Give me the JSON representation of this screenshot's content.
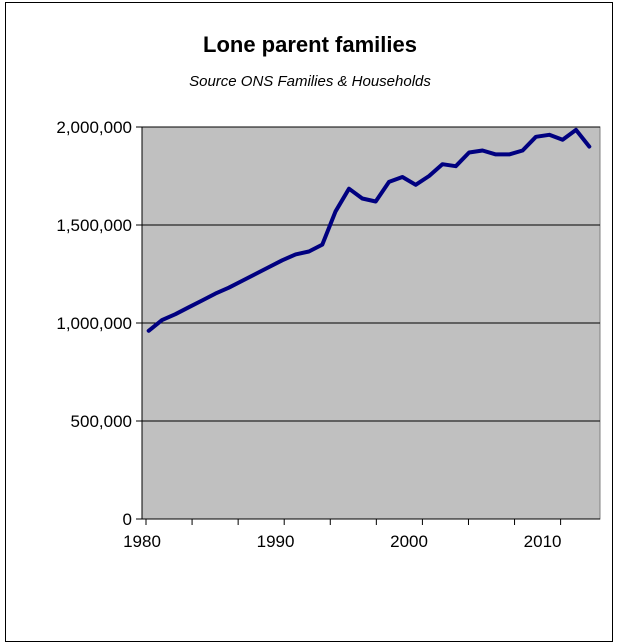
{
  "chart_data": {
    "type": "line",
    "title": "Lone parent families",
    "subtitle": "Source ONS Families & Households",
    "xlabel": "",
    "ylabel": "",
    "xlim": [
      1980,
      2014.3
    ],
    "ylim": [
      0,
      2000000
    ],
    "x_ticks": [
      1980,
      1990,
      2000,
      2010
    ],
    "x_tick_labels": [
      "1980",
      "1990",
      "2000",
      "2010"
    ],
    "y_ticks": [
      0,
      500000,
      1000000,
      1500000,
      2000000
    ],
    "y_tick_labels": [
      "0",
      "500,000",
      "1,000,000",
      "1,500,000",
      "2,000,000"
    ],
    "grid": "horizontal",
    "legend": "none",
    "colors": {
      "plot_bg": "#c0c0c0",
      "line": "#000080",
      "grid": "#000000"
    },
    "series": [
      {
        "x": [
          1980.5,
          1981.5,
          1982.5,
          1983.5,
          1984.5,
          1985.5,
          1986.5,
          1987.5,
          1988.5,
          1989.5,
          1990.5,
          1991.5,
          1992.5,
          1993.5,
          1994.5,
          1995.5,
          1996.5,
          1997.5,
          1998.5,
          1999.5,
          2000.5,
          2001.5,
          2002.5,
          2003.5,
          2004.5,
          2005.5,
          2006.5,
          2007.5,
          2008.5,
          2009.5,
          2010.5,
          2011.5,
          2012.5,
          2013.5
        ],
        "values": [
          960000,
          1015000,
          1045000,
          1080000,
          1115000,
          1150000,
          1180000,
          1215000,
          1250000,
          1285000,
          1320000,
          1350000,
          1365000,
          1400000,
          1570000,
          1685000,
          1635000,
          1620000,
          1720000,
          1745000,
          1705000,
          1750000,
          1810000,
          1800000,
          1870000,
          1880000,
          1860000,
          1860000,
          1880000,
          1950000,
          1960000,
          1935000,
          1985000,
          1900000
        ]
      }
    ]
  }
}
